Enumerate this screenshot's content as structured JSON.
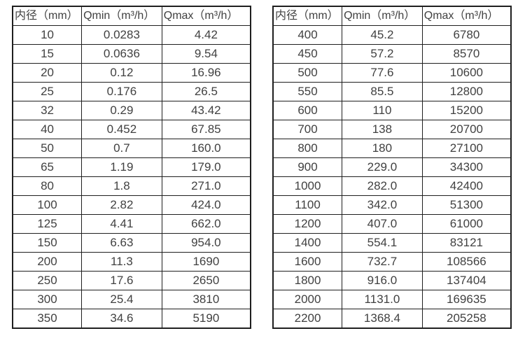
{
  "page": {
    "background_color": "#ffffff",
    "text_color": "#414141",
    "border_color": "#1f1f1f"
  },
  "tables": [
    {
      "name": "flow-table-small-diameter",
      "headers": [
        "内径（mm）",
        "Qmin（m³/h）",
        "Qmax（m³/h）"
      ],
      "rows": [
        [
          "10",
          "0.0283",
          "4.42"
        ],
        [
          "15",
          "0.0636",
          "9.54"
        ],
        [
          "20",
          "0.12",
          "16.96"
        ],
        [
          "25",
          "0.176",
          "26.5"
        ],
        [
          "32",
          "0.29",
          "43.42"
        ],
        [
          "40",
          "0.452",
          "67.85"
        ],
        [
          "50",
          "0.7",
          "160.0"
        ],
        [
          "65",
          "1.19",
          "179.0"
        ],
        [
          "80",
          "1.8",
          "271.0"
        ],
        [
          "100",
          "2.82",
          "424.0"
        ],
        [
          "125",
          "4.41",
          "662.0"
        ],
        [
          "150",
          "6.63",
          "954.0"
        ],
        [
          "200",
          "11.3",
          "1690"
        ],
        [
          "250",
          "17.6",
          "2650"
        ],
        [
          "300",
          "25.4",
          "3810"
        ],
        [
          "350",
          "34.6",
          "5190"
        ]
      ]
    },
    {
      "name": "flow-table-large-diameter",
      "headers": [
        "内径（mm）",
        "Qmin（m³/h）",
        "Qmax（m³/h）"
      ],
      "rows": [
        [
          "400",
          "45.2",
          "6780"
        ],
        [
          "450",
          "57.2",
          "8570"
        ],
        [
          "500",
          "77.6",
          "10600"
        ],
        [
          "550",
          "85.5",
          "12800"
        ],
        [
          "600",
          "110",
          "15200"
        ],
        [
          "700",
          "138",
          "20700"
        ],
        [
          "800",
          "180",
          "27100"
        ],
        [
          "900",
          "229.0",
          "34300"
        ],
        [
          "1000",
          "282.0",
          "42400"
        ],
        [
          "1100",
          "342.0",
          "51300"
        ],
        [
          "1200",
          "407.0",
          "61000"
        ],
        [
          "1400",
          "554.1",
          "83121"
        ],
        [
          "1600",
          "732.7",
          "108566"
        ],
        [
          "1800",
          "916.0",
          "137404"
        ],
        [
          "2000",
          "1131.0",
          "169635"
        ],
        [
          "2200",
          "1368.4",
          "205258"
        ]
      ]
    }
  ]
}
